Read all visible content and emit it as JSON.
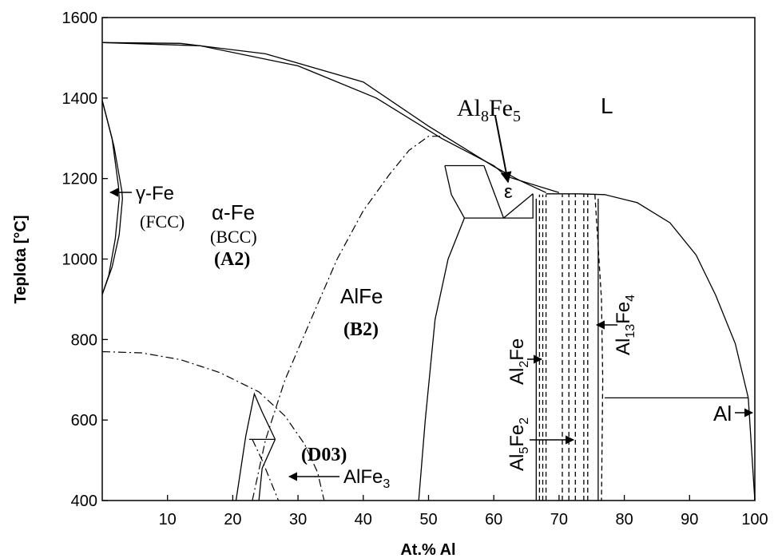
{
  "chart_data": {
    "type": "line",
    "title": "",
    "xlabel": "At.% Al",
    "ylabel": "Teplota [°C]",
    "xlim": [
      0,
      100
    ],
    "ylim": [
      400,
      1600
    ],
    "x_ticks": [
      10,
      20,
      30,
      40,
      50,
      60,
      70,
      80,
      90,
      100
    ],
    "y_ticks": [
      400,
      600,
      800,
      1000,
      1200,
      1400,
      1600
    ],
    "grid": false,
    "legend": "none",
    "phase_labels": {
      "liquid": "L",
      "gamma_fe": "γ-Fe",
      "fcc": "(FCC)",
      "alpha_fe": "α-Fe",
      "bcc": "(BCC)",
      "a2": "(A2)",
      "alfe": "AlFe",
      "b2": "(B2)",
      "d03": "(D03)",
      "epsilon": "ε",
      "al": "Al",
      "al8fe5": {
        "el1": "Al",
        "sub1": "8",
        "el2": "Fe",
        "sub2": "5"
      },
      "alfe3": {
        "el1": "AlFe",
        "sub1": "3"
      },
      "al2fe": {
        "el1": "Al",
        "sub1": "2",
        "el2": "Fe"
      },
      "al5fe2": {
        "el1": "Al",
        "sub1": "5",
        "el2": "Fe",
        "sub2": "2"
      },
      "al13fe4": {
        "el1": "Al",
        "sub1": "13",
        "el2": "Fe",
        "sub2": "4"
      }
    },
    "series": [
      {
        "style": "solid",
        "points": [
          [
            0,
            1538
          ],
          [
            12,
            1536
          ],
          [
            25,
            1510
          ],
          [
            40,
            1440
          ],
          [
            50,
            1330
          ],
          [
            60,
            1230
          ],
          [
            64,
            1195
          ],
          [
            68,
            1165
          ]
        ]
      },
      {
        "style": "solid",
        "points": [
          [
            0,
            1538
          ],
          [
            15,
            1530
          ],
          [
            30,
            1480
          ],
          [
            42,
            1400
          ],
          [
            52,
            1300
          ],
          [
            60,
            1232
          ],
          [
            62,
            1205
          ],
          [
            70,
            1165
          ]
        ]
      },
      {
        "style": "solid",
        "points": [
          [
            68,
            1162
          ],
          [
            73,
            1162
          ],
          [
            77,
            1160
          ],
          [
            82,
            1140
          ],
          [
            87,
            1090
          ],
          [
            91,
            1010
          ],
          [
            94,
            910
          ],
          [
            97,
            790
          ],
          [
            99,
            655
          ]
        ]
      },
      {
        "style": "solid",
        "points": [
          [
            0,
            1394
          ],
          [
            1.5,
            1300
          ],
          [
            2.5,
            1180
          ],
          [
            2.6,
            1150
          ],
          [
            2,
            1050
          ],
          [
            1,
            960
          ],
          [
            0,
            912
          ]
        ]
      },
      {
        "style": "solid",
        "points": [
          [
            0,
            1394
          ],
          [
            1.8,
            1280
          ],
          [
            3,
            1170
          ],
          [
            3.1,
            1150
          ],
          [
            2.6,
            1060
          ],
          [
            1.5,
            980
          ],
          [
            0,
            912
          ]
        ]
      },
      {
        "style": "solid",
        "points": [
          [
            52.5,
            1232
          ],
          [
            58.5,
            1232
          ]
        ]
      },
      {
        "style": "solid",
        "points": [
          [
            52.5,
            1232
          ],
          [
            53.5,
            1160
          ],
          [
            55.5,
            1102
          ]
        ]
      },
      {
        "style": "solid",
        "points": [
          [
            58.5,
            1232
          ],
          [
            61.5,
            1102
          ]
        ]
      },
      {
        "style": "solid",
        "points": [
          [
            55.5,
            1102
          ],
          [
            66,
            1102
          ],
          [
            66,
            1162
          ]
        ]
      },
      {
        "style": "solid",
        "points": [
          [
            61.5,
            1102
          ],
          [
            66,
            1162
          ]
        ]
      },
      {
        "style": "solid",
        "points": [
          [
            48.5,
            400
          ],
          [
            49.5,
            600
          ],
          [
            51,
            850
          ],
          [
            53,
            1000
          ],
          [
            55.5,
            1102
          ]
        ]
      },
      {
        "style": "solid",
        "points": [
          [
            20.5,
            400
          ],
          [
            22,
            560
          ],
          [
            23.3,
            665
          ],
          [
            24.5,
            620
          ],
          [
            26.5,
            552
          ]
        ]
      },
      {
        "style": "solid",
        "points": [
          [
            24,
            400
          ],
          [
            24.5,
            480
          ],
          [
            26.5,
            552
          ]
        ]
      },
      {
        "style": "solid",
        "points": [
          [
            22.5,
            552
          ],
          [
            26.5,
            552
          ]
        ]
      },
      {
        "style": "solid",
        "points": [
          [
            77,
            655
          ],
          [
            99,
            655
          ]
        ]
      },
      {
        "style": "solid",
        "points": [
          [
            99,
            655
          ],
          [
            100,
            400
          ]
        ]
      },
      {
        "style": "solid",
        "points": [
          [
            66.5,
            400
          ],
          [
            66.5,
            1150
          ]
        ]
      },
      {
        "style": "solid",
        "points": [
          [
            76,
            400
          ],
          [
            76,
            1150
          ]
        ]
      },
      {
        "style": "dashdot",
        "points": [
          [
            23,
            400
          ],
          [
            25,
            550
          ],
          [
            28,
            700
          ],
          [
            32,
            850
          ],
          [
            36,
            1000
          ],
          [
            40,
            1120
          ],
          [
            44,
            1210
          ],
          [
            47,
            1270
          ],
          [
            50,
            1305
          ],
          [
            53,
            1305
          ]
        ]
      },
      {
        "style": "dashdot",
        "points": [
          [
            0,
            770
          ],
          [
            6,
            767
          ],
          [
            12,
            750
          ],
          [
            18,
            718
          ],
          [
            24,
            670
          ],
          [
            28,
            610
          ],
          [
            31,
            540
          ],
          [
            33,
            470
          ],
          [
            34,
            400
          ]
        ]
      },
      {
        "style": "dashdot",
        "points": [
          [
            23,
            552
          ],
          [
            24.5,
            500
          ],
          [
            26,
            440
          ],
          [
            27,
            400
          ]
        ]
      },
      {
        "style": "dashed",
        "points": [
          [
            67,
            400
          ],
          [
            67,
            1160
          ]
        ]
      },
      {
        "style": "dashed",
        "points": [
          [
            67.5,
            400
          ],
          [
            67.5,
            1160
          ]
        ]
      },
      {
        "style": "dashed",
        "points": [
          [
            68,
            400
          ],
          [
            68,
            1160
          ]
        ]
      },
      {
        "style": "dashed",
        "points": [
          [
            70.5,
            400
          ],
          [
            70.5,
            1160
          ]
        ]
      },
      {
        "style": "dashed",
        "points": [
          [
            71.5,
            400
          ],
          [
            71.5,
            1162
          ]
        ]
      },
      {
        "style": "dashed",
        "points": [
          [
            72.5,
            400
          ],
          [
            72.5,
            1162
          ]
        ]
      },
      {
        "style": "dashed",
        "points": [
          [
            73.8,
            400
          ],
          [
            73.8,
            1162
          ]
        ]
      },
      {
        "style": "dashed",
        "points": [
          [
            74.4,
            400
          ],
          [
            74.4,
            1162
          ]
        ]
      },
      {
        "style": "dashed",
        "points": [
          [
            75.5,
            1160
          ],
          [
            76.5,
            900
          ],
          [
            76.7,
            700
          ],
          [
            76.5,
            400
          ]
        ]
      }
    ]
  }
}
